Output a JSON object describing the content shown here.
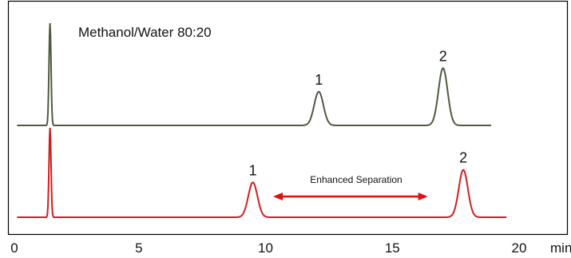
{
  "chart_data": {
    "type": "line",
    "title": "Methanol/Water 80:20",
    "annotation": "Enhanced Separation",
    "x_unit": "min",
    "xlim": [
      0,
      21.5
    ],
    "x_ticks": [
      0,
      5,
      10,
      15,
      20
    ],
    "x_tick_labels": [
      "0",
      "5",
      "10",
      "15",
      "20"
    ],
    "grid": false,
    "colors": {
      "top_trace": "#4f5b3e",
      "bottom_trace": "#d21e1e",
      "arrow": "#e01010",
      "frame": "#000000"
    },
    "series": [
      {
        "trace": "top",
        "x_end": 18.9,
        "peaks": [
          {
            "label": "",
            "x": 1.5,
            "height": 1.0
          },
          {
            "label": "1",
            "x": 12.1,
            "height": 0.33
          },
          {
            "label": "2",
            "x": 17.0,
            "height": 0.56
          }
        ]
      },
      {
        "trace": "bottom",
        "x_end": 19.5,
        "peaks": [
          {
            "label": "",
            "x": 1.5,
            "height": 1.0
          },
          {
            "label": "1",
            "x": 9.5,
            "height": 0.39
          },
          {
            "label": "2",
            "x": 17.8,
            "height": 0.53
          }
        ]
      }
    ],
    "separation_arrow": {
      "x_start": 10.3,
      "x_end": 16.4
    }
  }
}
